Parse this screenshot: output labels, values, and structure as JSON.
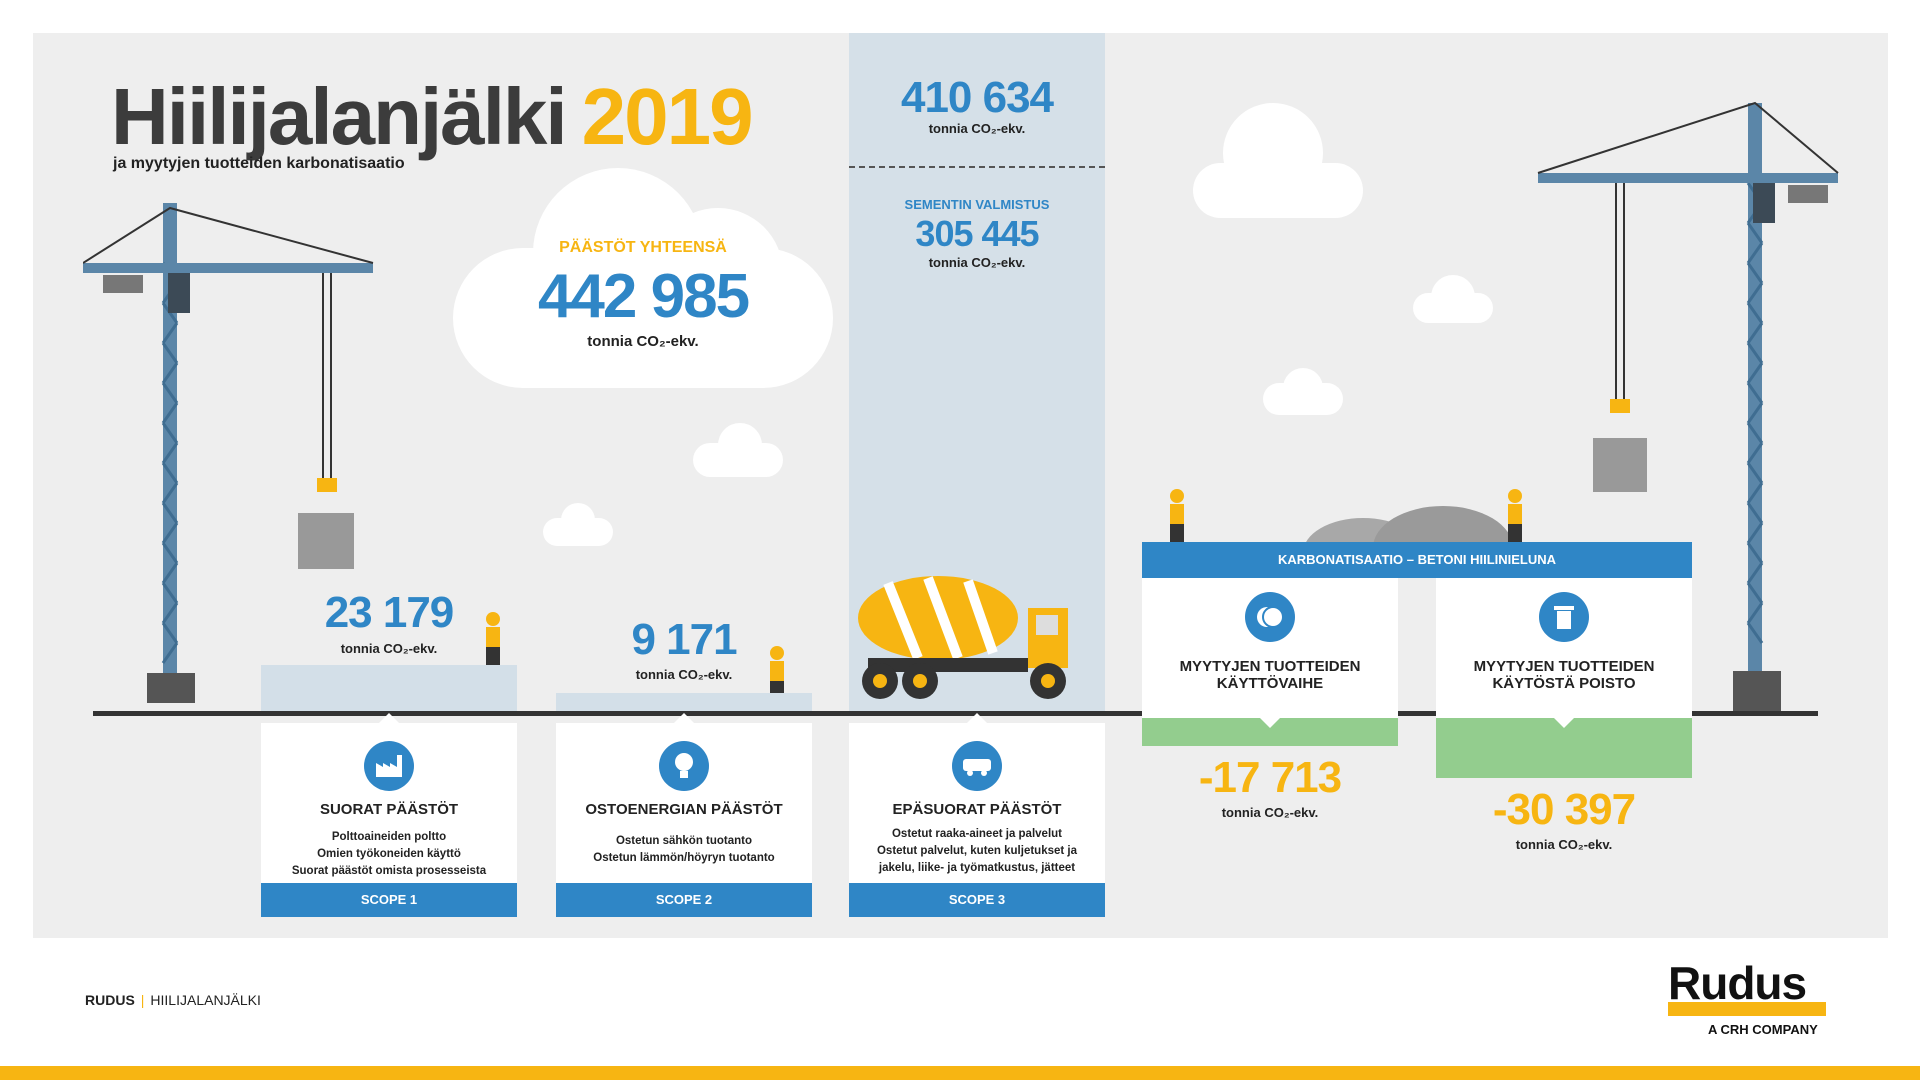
{
  "header": {
    "title": "Hiilijalanjälki",
    "year": "2019",
    "subtitle": "ja myytyjen tuotteiden karbonatisaatio"
  },
  "total": {
    "label": "PÄÄSTÖT YHTEENSÄ",
    "value": "442 985",
    "unit": "tonnia CO₂-ekv."
  },
  "scope3_top": {
    "total_value": "410 634",
    "total_unit": "tonnia CO₂-ekv.",
    "sub_label": "SEMENTIN VALMISTUS",
    "sub_value": "305 445",
    "sub_unit": "tonnia CO₂-ekv."
  },
  "scopes": [
    {
      "value": "23 179",
      "unit": "tonnia CO₂-ekv.",
      "icon": "factory-icon",
      "title": "SUORAT PÄÄSTÖT",
      "lines": [
        "Polttoaineiden poltto",
        "Omien työkoneiden käyttö",
        "Suorat päästöt omista prosesseista"
      ],
      "scope_label": "SCOPE 1"
    },
    {
      "value": "9 171",
      "unit": "tonnia CO₂-ekv.",
      "icon": "lightbulb-icon",
      "title": "OSTOENERGIAN PÄÄSTÖT",
      "lines": [
        "Ostetun sähkön tuotanto",
        "Ostetun lämmön/höyryn tuotanto"
      ],
      "scope_label": "SCOPE 2"
    },
    {
      "icon": "van-icon",
      "title": "EPÄSUORAT PÄÄSTÖT",
      "lines": [
        "Ostetut raaka-aineet ja palvelut",
        "Ostetut palvelut, kuten kuljetukset ja",
        "jakelu, liike- ja työmatkustus, jätteet"
      ],
      "scope_label": "SCOPE 3"
    }
  ],
  "carbonation": {
    "header": "KARBONATISAATIO – BETONI HIILINIELUNA",
    "items": [
      {
        "icon": "coins-icon",
        "title_line1": "MYYTYJEN TUOTTEIDEN",
        "title_line2": "KÄYTTÖVAIHE",
        "value": "-17 713",
        "unit": "tonnia CO₂-ekv."
      },
      {
        "icon": "trash-icon",
        "title_line1": "MYYTYJEN TUOTTEIDEN",
        "title_line2": "KÄYTÖSTÄ POISTO",
        "value": "-30 397",
        "unit": "tonnia CO₂-ekv."
      }
    ]
  },
  "footer": {
    "brand": "RUDUS",
    "section": "HIILIJALANJÄLKI",
    "logo_word": "Rudus",
    "logo_sub": "A CRH COMPANY"
  },
  "colors": {
    "blue": "#2f86c6",
    "yellow": "#f7b512",
    "green": "#93cd8e",
    "panel": "#eeeeee"
  }
}
